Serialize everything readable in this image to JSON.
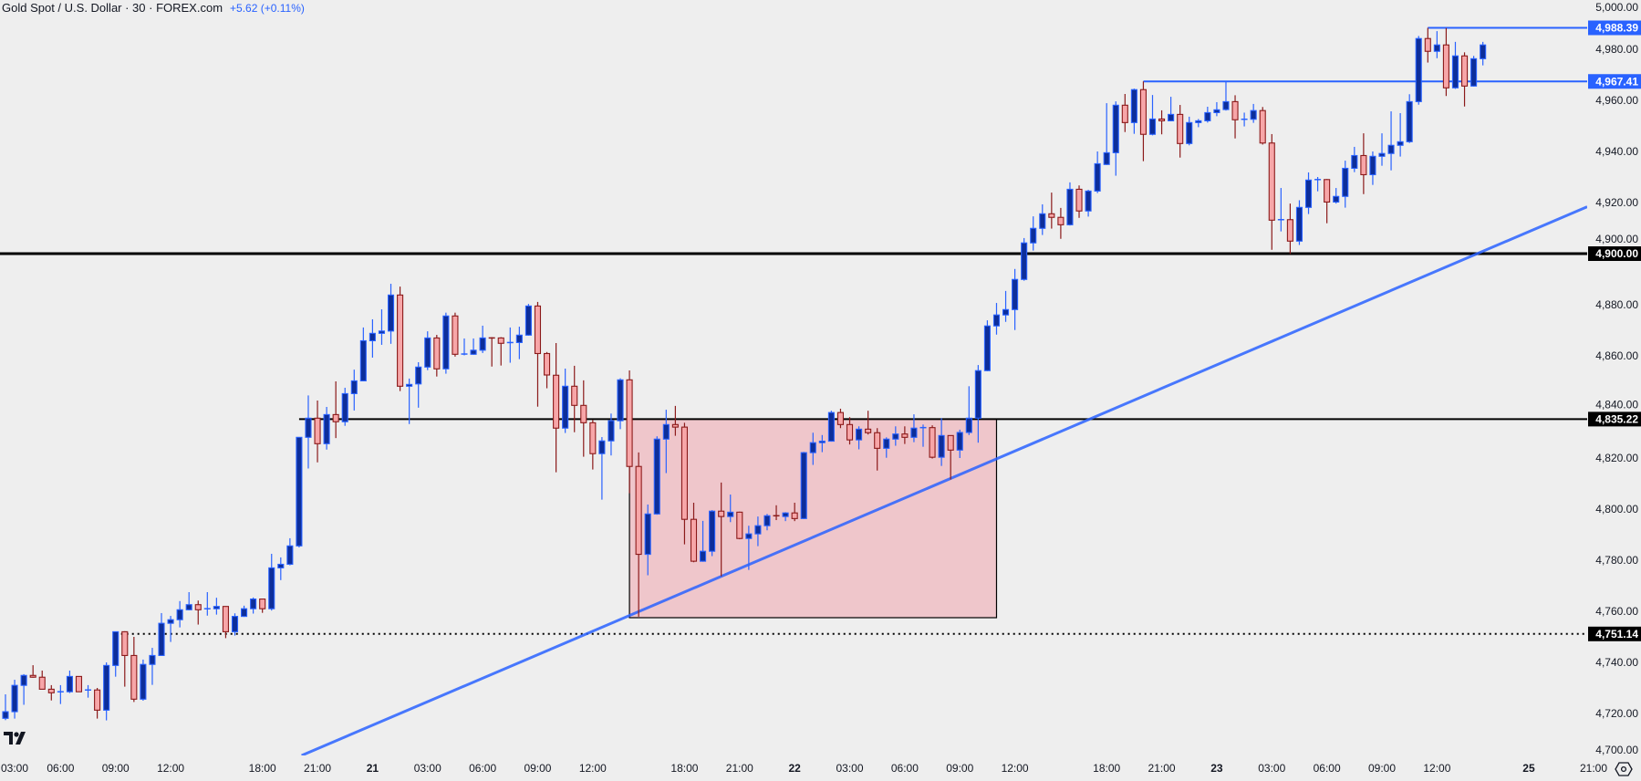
{
  "header": {
    "title": "Gold Spot / U.S. Dollar · 30 · FOREX.com",
    "change": "+5.62 (+0.11%)"
  },
  "colors": {
    "background": "#eeeeee",
    "bull_body": "#0d2e9a",
    "bull_border": "#2962ff",
    "bear_body": "#f7a6a8",
    "bear_border": "#8b1a1a",
    "accent_blue": "#2962ff",
    "zone_fill": "#efc6cb",
    "level_black": "#000000"
  },
  "icons": {
    "logo": "tradingview-logo",
    "settings": "settings-hexagon-icon"
  },
  "chart_data": {
    "type": "candlestick",
    "symbol": "Gold Spot / U.S. Dollar",
    "interval": "30",
    "ylim": [
      4703.6,
      4999.3
    ],
    "y_ticks": [
      "4,700.00",
      "4,720.00",
      "4,740.00",
      "4,760.00",
      "4,780.00",
      "4,800.00",
      "4,820.00",
      "4,840.00",
      "4,860.00",
      "4,880.00",
      "4,900.00",
      "4,920.00",
      "4,940.00",
      "4,960.00",
      "4,980.00",
      "5,000.00"
    ],
    "y_tick_values": [
      4700,
      4720,
      4740,
      4760,
      4780,
      4800,
      4820,
      4840,
      4860,
      4880,
      4900,
      4920,
      4940,
      4960,
      4980,
      5000
    ],
    "x_ticks": [
      {
        "label": "03:00",
        "bar": 0
      },
      {
        "label": "06:00",
        "bar": 6
      },
      {
        "label": "09:00",
        "bar": 12
      },
      {
        "label": "12:00",
        "bar": 18
      },
      {
        "label": "18:00",
        "bar": 28
      },
      {
        "label": "21:00",
        "bar": 34
      },
      {
        "label": "21",
        "bar": 40,
        "day": true
      },
      {
        "label": "03:00",
        "bar": 46
      },
      {
        "label": "06:00",
        "bar": 52
      },
      {
        "label": "09:00",
        "bar": 58
      },
      {
        "label": "12:00",
        "bar": 64
      },
      {
        "label": "18:00",
        "bar": 74
      },
      {
        "label": "21:00",
        "bar": 80
      },
      {
        "label": "22",
        "bar": 86,
        "day": true
      },
      {
        "label": "03:00",
        "bar": 92
      },
      {
        "label": "06:00",
        "bar": 98
      },
      {
        "label": "09:00",
        "bar": 104
      },
      {
        "label": "12:00",
        "bar": 110
      },
      {
        "label": "18:00",
        "bar": 120
      },
      {
        "label": "21:00",
        "bar": 126
      },
      {
        "label": "23",
        "bar": 132,
        "day": true
      },
      {
        "label": "03:00",
        "bar": 138
      },
      {
        "label": "06:00",
        "bar": 144
      },
      {
        "label": "09:00",
        "bar": 150
      },
      {
        "label": "12:00",
        "bar": 156
      },
      {
        "label": "25",
        "bar": 166,
        "day": true
      },
      {
        "label": "21:00",
        "bar": 172
      }
    ],
    "ohlc_fields": [
      "open",
      "high",
      "low",
      "close"
    ],
    "candles": [
      [
        4718.1,
        4727.5,
        4717.4,
        4720.7
      ],
      [
        4720.7,
        4733.2,
        4718.0,
        4731.0
      ],
      [
        4731.0,
        4735.4,
        4723.4,
        4734.9
      ],
      [
        4734.9,
        4738.9,
        4734.0,
        4734.2
      ],
      [
        4734.2,
        4736.8,
        4729.5,
        4729.5
      ],
      [
        4729.5,
        4731.1,
        4725.1,
        4728.1
      ],
      [
        4728.3,
        4731.1,
        4723.7,
        4728.5
      ],
      [
        4728.5,
        4736.8,
        4728.0,
        4734.5
      ],
      [
        4734.5,
        4734.5,
        4728.5,
        4728.5
      ],
      [
        4728.8,
        4731.1,
        4726.2,
        4729.2
      ],
      [
        4729.2,
        4730.0,
        4718.0,
        4721.3
      ],
      [
        4721.3,
        4740.0,
        4717.3,
        4738.8
      ],
      [
        4738.8,
        4752.0,
        4734.4,
        4752.0
      ],
      [
        4752.0,
        4752.2,
        4730.5,
        4742.7
      ],
      [
        4742.7,
        4750.0,
        4724.5,
        4725.6
      ],
      [
        4725.6,
        4741.1,
        4725.0,
        4739.2
      ],
      [
        4739.2,
        4745.7,
        4731.2,
        4742.7
      ],
      [
        4742.7,
        4759.3,
        4742.5,
        4755.3
      ],
      [
        4755.3,
        4758.2,
        4748.0,
        4756.7
      ],
      [
        4756.7,
        4764.0,
        4753.7,
        4760.6
      ],
      [
        4760.6,
        4767.5,
        4760.4,
        4762.6
      ],
      [
        4762.6,
        4764.2,
        4754.8,
        4760.6
      ],
      [
        4761.0,
        4767.5,
        4758.3,
        4761.0
      ],
      [
        4761.0,
        4765.3,
        4758.7,
        4761.9
      ],
      [
        4761.9,
        4762.0,
        4749.5,
        4752.0
      ],
      [
        4752.0,
        4759.2,
        4750.5,
        4758.0
      ],
      [
        4758.0,
        4762.2,
        4757.8,
        4761.0
      ],
      [
        4761.0,
        4765.4,
        4759.1,
        4764.8
      ],
      [
        4764.8,
        4765.0,
        4759.4,
        4761.0
      ],
      [
        4761.0,
        4782.5,
        4760.3,
        4777.0
      ],
      [
        4777.0,
        4781.1,
        4772.2,
        4778.4
      ],
      [
        4778.4,
        4788.6,
        4778.0,
        4785.6
      ],
      [
        4785.6,
        4828.1,
        4785.0,
        4828.1
      ],
      [
        4828.1,
        4844.5,
        4815.9,
        4835.6
      ],
      [
        4835.6,
        4842.5,
        4818.3,
        4825.6
      ],
      [
        4825.6,
        4840.0,
        4823.3,
        4837.0
      ],
      [
        4837.0,
        4850.0,
        4827.8,
        4834.2
      ],
      [
        4834.2,
        4847.5,
        4832.6,
        4845.2
      ],
      [
        4845.2,
        4854.6,
        4838.6,
        4850.2
      ],
      [
        4850.2,
        4871.1,
        4850.0,
        4865.9
      ],
      [
        4865.9,
        4874.3,
        4859.3,
        4868.8
      ],
      [
        4868.8,
        4878.2,
        4864.3,
        4869.7
      ],
      [
        4869.7,
        4888.2,
        4864.7,
        4883.8
      ],
      [
        4883.8,
        4887.1,
        4846.2,
        4848.1
      ],
      [
        4848.1,
        4851.1,
        4833.3,
        4848.8
      ],
      [
        4849.0,
        4857.5,
        4839.7,
        4855.6
      ],
      [
        4855.6,
        4869.6,
        4854.4,
        4867.0
      ],
      [
        4867.0,
        4868.2,
        4851.9,
        4854.9
      ],
      [
        4854.9,
        4876.9,
        4853.0,
        4875.6
      ],
      [
        4875.6,
        4876.9,
        4859.7,
        4860.6
      ],
      [
        4860.6,
        4866.8,
        4860.2,
        4860.7
      ],
      [
        4860.6,
        4866.8,
        4860.4,
        4862.2
      ],
      [
        4862.2,
        4871.8,
        4861.1,
        4867.0
      ],
      [
        4867.0,
        4867.3,
        4855.8,
        4866.8
      ],
      [
        4867.0,
        4867.3,
        4856.2,
        4864.9
      ],
      [
        4865.1,
        4871.1,
        4857.3,
        4865.2
      ],
      [
        4865.2,
        4871.4,
        4858.7,
        4868.1
      ],
      [
        4868.1,
        4880.3,
        4867.9,
        4879.5
      ],
      [
        4879.5,
        4881.1,
        4840.1,
        4860.9
      ],
      [
        4860.9,
        4861.5,
        4847.3,
        4852.5
      ],
      [
        4852.4,
        4865.0,
        4814.4,
        4831.7
      ],
      [
        4831.7,
        4855.0,
        4829.8,
        4848.1
      ],
      [
        4848.1,
        4856.1,
        4830.1,
        4840.6
      ],
      [
        4840.6,
        4850.4,
        4820.5,
        4833.8
      ],
      [
        4833.8,
        4834.9,
        4815.5,
        4821.7
      ],
      [
        4821.7,
        4828.2,
        4803.7,
        4826.7
      ],
      [
        4826.7,
        4837.4,
        4821.0,
        4834.6
      ],
      [
        4834.6,
        4851.2,
        4831.3,
        4850.6
      ],
      [
        4850.6,
        4854.3,
        4806.2,
        4816.7
      ],
      [
        4816.7,
        4822.2,
        4757.9,
        4782.3
      ],
      [
        4782.3,
        4801.8,
        4774.1,
        4798.1
      ],
      [
        4798.1,
        4828.5,
        4797.8,
        4827.4
      ],
      [
        4827.4,
        4838.9,
        4814.1,
        4833.1
      ],
      [
        4833.1,
        4840.4,
        4828.7,
        4832.1
      ],
      [
        4832.1,
        4833.8,
        4786.2,
        4796.0
      ],
      [
        4796.0,
        4802.5,
        4779.2,
        4779.6
      ],
      [
        4779.6,
        4795.4,
        4779.4,
        4783.5
      ],
      [
        4783.5,
        4799.6,
        4781.6,
        4799.2
      ],
      [
        4799.2,
        4810.4,
        4773.7,
        4797.1
      ],
      [
        4797.1,
        4805.7,
        4794.9,
        4798.8
      ],
      [
        4798.8,
        4799.0,
        4788.2,
        4788.5
      ],
      [
        4788.5,
        4793.5,
        4776.2,
        4790.3
      ],
      [
        4790.3,
        4797.1,
        4785.5,
        4793.5
      ],
      [
        4793.5,
        4798.1,
        4791.7,
        4797.4
      ],
      [
        4797.4,
        4801.5,
        4795.7,
        4797.1
      ],
      [
        4797.1,
        4798.8,
        4795.3,
        4798.5
      ],
      [
        4798.5,
        4802.5,
        4795.3,
        4796.3
      ],
      [
        4796.3,
        4822.4,
        4796.1,
        4822.1
      ],
      [
        4822.1,
        4829.9,
        4817.3,
        4826.0
      ],
      [
        4826.0,
        4829.0,
        4822.3,
        4826.6
      ],
      [
        4826.6,
        4838.5,
        4826.4,
        4837.8
      ],
      [
        4837.8,
        4839.3,
        4831.7,
        4833.1
      ],
      [
        4833.1,
        4836.0,
        4825.3,
        4827.1
      ],
      [
        4827.1,
        4832.4,
        4823.4,
        4831.3
      ],
      [
        4831.3,
        4838.5,
        4829.2,
        4829.9
      ],
      [
        4829.9,
        4831.7,
        4815.1,
        4823.8
      ],
      [
        4823.8,
        4828.1,
        4820.1,
        4827.4
      ],
      [
        4827.4,
        4832.4,
        4824.8,
        4829.4
      ],
      [
        4829.4,
        4832.4,
        4825.5,
        4828.1
      ],
      [
        4828.1,
        4837.1,
        4826.2,
        4831.7
      ],
      [
        4831.8,
        4833.1,
        4824.4,
        4831.9
      ],
      [
        4831.9,
        4832.8,
        4819.8,
        4820.3
      ],
      [
        4820.3,
        4835.6,
        4816.9,
        4828.8
      ],
      [
        4828.8,
        4828.8,
        4811.6,
        4823.1
      ],
      [
        4823.1,
        4831.1,
        4820.0,
        4830.0
      ],
      [
        4830.0,
        4848.1,
        4829.0,
        4835.6
      ],
      [
        4835.6,
        4856.4,
        4826.0,
        4854.2
      ],
      [
        4854.2,
        4873.9,
        4854.0,
        4871.7
      ],
      [
        4871.7,
        4880.7,
        4868.3,
        4876.0
      ],
      [
        4876.0,
        4885.4,
        4873.3,
        4878.1
      ],
      [
        4878.1,
        4894.0,
        4870.1,
        4889.9
      ],
      [
        4889.9,
        4906.1,
        4889.4,
        4904.2
      ],
      [
        4904.2,
        4914.6,
        4901.2,
        4909.9
      ],
      [
        4909.9,
        4919.3,
        4907.3,
        4915.6
      ],
      [
        4915.6,
        4923.9,
        4909.8,
        4914.2
      ],
      [
        4914.2,
        4917.9,
        4905.8,
        4911.3
      ],
      [
        4911.3,
        4927.9,
        4911.0,
        4925.2
      ],
      [
        4925.2,
        4926.7,
        4914.0,
        4916.7
      ],
      [
        4916.7,
        4925.0,
        4914.5,
        4924.5
      ],
      [
        4924.5,
        4940.0,
        4923.7,
        4935.2
      ],
      [
        4934.9,
        4958.9,
        4934.7,
        4939.5
      ],
      [
        4939.5,
        4959.6,
        4930.5,
        4958.1
      ],
      [
        4958.1,
        4962.5,
        4947.6,
        4951.3
      ],
      [
        4951.3,
        4964.6,
        4946.9,
        4964.2
      ],
      [
        4964.2,
        4967.41,
        4936.2,
        4946.7
      ],
      [
        4946.7,
        4962.1,
        4946.3,
        4952.7
      ],
      [
        4952.7,
        4956.1,
        4946.7,
        4952.0
      ],
      [
        4952.0,
        4961.4,
        4951.8,
        4954.5
      ],
      [
        4954.5,
        4958.2,
        4937.6,
        4943.1
      ],
      [
        4943.1,
        4953.6,
        4942.4,
        4951.3
      ],
      [
        4951.3,
        4952.7,
        4949.5,
        4952.0
      ],
      [
        4952.0,
        4957.5,
        4951.3,
        4955.2
      ],
      [
        4955.2,
        4959.3,
        4953.8,
        4956.3
      ],
      [
        4956.4,
        4967.41,
        4956.0,
        4959.5
      ],
      [
        4959.5,
        4962.0,
        4945.1,
        4952.4
      ],
      [
        4952.5,
        4955.2,
        4949.8,
        4952.6
      ],
      [
        4952.6,
        4958.6,
        4951.2,
        4956.0
      ],
      [
        4956.0,
        4957.4,
        4942.7,
        4943.3
      ],
      [
        4943.3,
        4946.8,
        4901.5,
        4913.1
      ],
      [
        4913.1,
        4925.7,
        4908.7,
        4913.3
      ],
      [
        4913.3,
        4919.6,
        4899.9,
        4904.9
      ],
      [
        4904.9,
        4920.9,
        4903.4,
        4918.1
      ],
      [
        4918.1,
        4931.8,
        4915.5,
        4928.8
      ],
      [
        4928.9,
        4930.0,
        4924.4,
        4929.0
      ],
      [
        4929.0,
        4929.2,
        4911.9,
        4920.2
      ],
      [
        4920.2,
        4925.7,
        4919.6,
        4922.4
      ],
      [
        4922.4,
        4936.4,
        4918.0,
        4933.4
      ],
      [
        4933.4,
        4941.8,
        4931.9,
        4938.4
      ],
      [
        4938.4,
        4947.1,
        4923.3,
        4930.9
      ],
      [
        4930.9,
        4940.0,
        4926.9,
        4938.1
      ],
      [
        4938.1,
        4947.1,
        4934.4,
        4939.2
      ],
      [
        4939.2,
        4955.7,
        4932.6,
        4942.4
      ],
      [
        4942.4,
        4955.0,
        4938.0,
        4943.8
      ],
      [
        4943.8,
        4962.4,
        4943.3,
        4959.5
      ],
      [
        4959.5,
        4985.2,
        4958.3,
        4984.2
      ],
      [
        4984.2,
        4988.39,
        4974.8,
        4979.2
      ],
      [
        4979.2,
        4987.1,
        4976.5,
        4981.7
      ],
      [
        4981.7,
        4988.3,
        4961.7,
        4964.9
      ],
      [
        4964.9,
        4982.9,
        4964.5,
        4977.4
      ],
      [
        4977.4,
        4978.8,
        4957.6,
        4965.6
      ],
      [
        4965.6,
        4977.4,
        4965.4,
        4976.3
      ],
      [
        4976.3,
        4982.9,
        4973.7,
        4981.7
      ]
    ],
    "levels": [
      {
        "price": 4988.39,
        "label": "4,988.39",
        "style": "solid",
        "color": "#2962ff",
        "from_bar": 155
      },
      {
        "price": 4967.41,
        "label": "4,967.41",
        "style": "solid",
        "color": "#2962ff",
        "from_bar": 124
      },
      {
        "price": 4900.0,
        "label": "4,900.00",
        "style": "thick",
        "color": "#000000",
        "from_bar": null
      },
      {
        "price": 4835.22,
        "label": "4,835.22",
        "style": "solid",
        "color": "#000000",
        "from_bar": 32
      },
      {
        "price": 4751.14,
        "label": "4,751.14",
        "style": "dotted",
        "color": "#000000",
        "from_bar": 12
      }
    ],
    "zone": {
      "from_bar": 68,
      "to_bar": 108,
      "top": 4835.22,
      "bottom": 4757.5
    },
    "trendline": {
      "bar1": 62.1,
      "price1": 4749.3,
      "bar2": 172.4,
      "price2": 4918.4,
      "extend": "both"
    },
    "grid": false,
    "legend": "top-left"
  }
}
